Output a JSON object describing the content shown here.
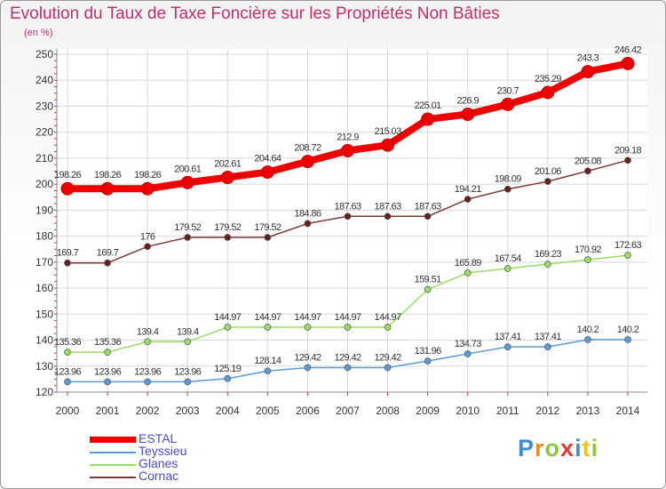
{
  "title": "Evolution du Taux de Taxe Foncière sur les Propriétés Non Bâties",
  "unit_label": "(en %)",
  "logo": {
    "text": "Proxiti",
    "letters": [
      {
        "ch": "P",
        "color": "#3c8fd6"
      },
      {
        "ch": "r",
        "color": "#f08a1c"
      },
      {
        "ch": "o",
        "color": "#8cc63e"
      },
      {
        "ch": "x",
        "color": "#e23a2e"
      },
      {
        "ch": "i",
        "color": "#3c8fd6"
      },
      {
        "ch": "t",
        "color": "#f0c21c"
      },
      {
        "ch": "i",
        "color": "#8cc63e"
      }
    ]
  },
  "chart_data": {
    "type": "line",
    "x": [
      "2000",
      "2001",
      "2002",
      "2003",
      "2004",
      "2005",
      "2006",
      "2007",
      "2008",
      "2009",
      "2010",
      "2011",
      "2012",
      "2013",
      "2014"
    ],
    "ylim": [
      120,
      250
    ],
    "yticks": [
      120,
      130,
      140,
      150,
      160,
      170,
      180,
      190,
      200,
      210,
      220,
      230,
      240,
      250
    ],
    "grid": true,
    "series": [
      {
        "name": "ESTAL",
        "color": "#ee0000",
        "marker_color": "#ee0000",
        "values": [
          198.26,
          198.26,
          198.26,
          200.61,
          202.61,
          204.64,
          208.72,
          212.9,
          215.03,
          225.01,
          226.9,
          230.7,
          235.29,
          243.3,
          246.42
        ],
        "labels": [
          "198.26",
          "198.26",
          "198.26",
          "200.61",
          "202.61",
          "204.64",
          "208.72",
          "212.9",
          "215.03",
          "225.01",
          "226.9",
          "230.7",
          "235.29",
          "243.3",
          "246.42"
        ]
      },
      {
        "name": "Teyssieu",
        "color": "#5b9bd5",
        "marker_color": "#5b9bd5",
        "values": [
          123.96,
          123.96,
          123.96,
          123.96,
          125.19,
          128.14,
          129.42,
          129.42,
          129.42,
          131.96,
          134.73,
          137.41,
          137.41,
          140.2,
          140.2
        ],
        "labels": [
          "123.96",
          "123.96",
          "123.96",
          "123.96",
          "125.19",
          "128.14",
          "129.42",
          "129.42",
          "129.42",
          "131.96",
          "134.73",
          "137.41",
          "137.41",
          "140.2",
          "140.2"
        ]
      },
      {
        "name": "Glanes",
        "color": "#99dd66",
        "marker_color": "#99dd66",
        "values": [
          135.36,
          135.36,
          139.4,
          139.4,
          144.97,
          144.97,
          144.97,
          144.97,
          144.97,
          159.51,
          165.89,
          167.54,
          169.23,
          170.92,
          172.63
        ],
        "labels": [
          "135.36",
          "135.36",
          "139.4",
          "139.4",
          "144.97",
          "144.97",
          "144.97",
          "144.97",
          "144.97",
          "159.51",
          "165.89",
          "167.54",
          "169.23",
          "170.92",
          "172.63"
        ]
      },
      {
        "name": "Cornac",
        "color": "#7a3a3a",
        "marker_color": "#6b1e1e",
        "values": [
          169.7,
          169.7,
          176,
          179.52,
          179.52,
          179.52,
          184.86,
          187.63,
          187.63,
          187.63,
          194.21,
          198.09,
          201.06,
          205.08,
          209.18
        ],
        "labels": [
          "169.7",
          "169.7",
          "176",
          "179.52",
          "179.52",
          "179.52",
          "184.86",
          "187.63",
          "187.63",
          "187.63",
          "194.21",
          "198.09",
          "201.06",
          "205.08",
          "209.18"
        ]
      }
    ]
  }
}
